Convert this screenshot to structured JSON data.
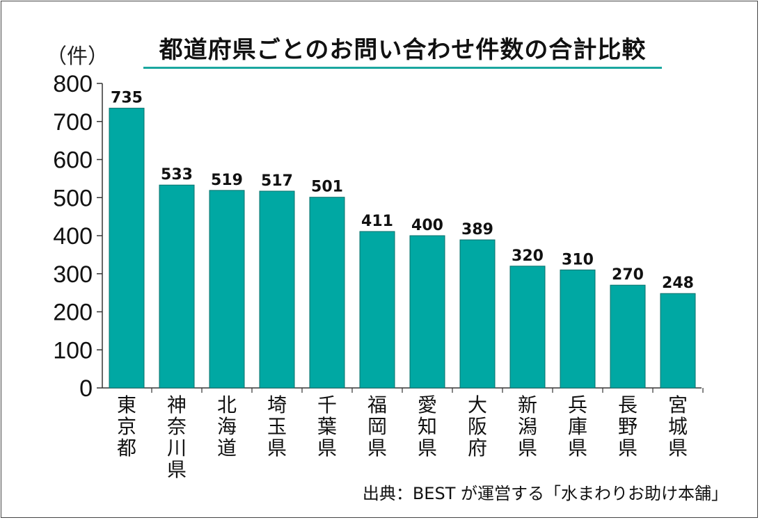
{
  "title": "都道府県ごとのお問い合わせ件数の合計比較",
  "source": "出典：BEST が運営する「水まわりお助け本舗」",
  "colors": {
    "bar": "#00a8a3",
    "bar_edge": "#08706b",
    "accent": "#1aa79f",
    "axis": "#333333"
  },
  "chart_data": {
    "type": "bar",
    "title": "都道府県ごとのお問い合わせ件数の合計比較",
    "ylabel": "（件）",
    "xlabel": "",
    "ylim": [
      0,
      800
    ],
    "yticks": [
      0,
      100,
      200,
      300,
      400,
      500,
      600,
      700,
      800
    ],
    "categories": [
      "東京都",
      "神奈川県",
      "北海道",
      "埼玉県",
      "千葉県",
      "福岡県",
      "愛知県",
      "大阪府",
      "新潟県",
      "兵庫県",
      "長野県",
      "宮城県"
    ],
    "values": [
      735,
      533,
      519,
      517,
      501,
      411,
      400,
      389,
      320,
      310,
      270,
      248
    ],
    "data_labels": true,
    "grid": false,
    "legend": "none"
  }
}
